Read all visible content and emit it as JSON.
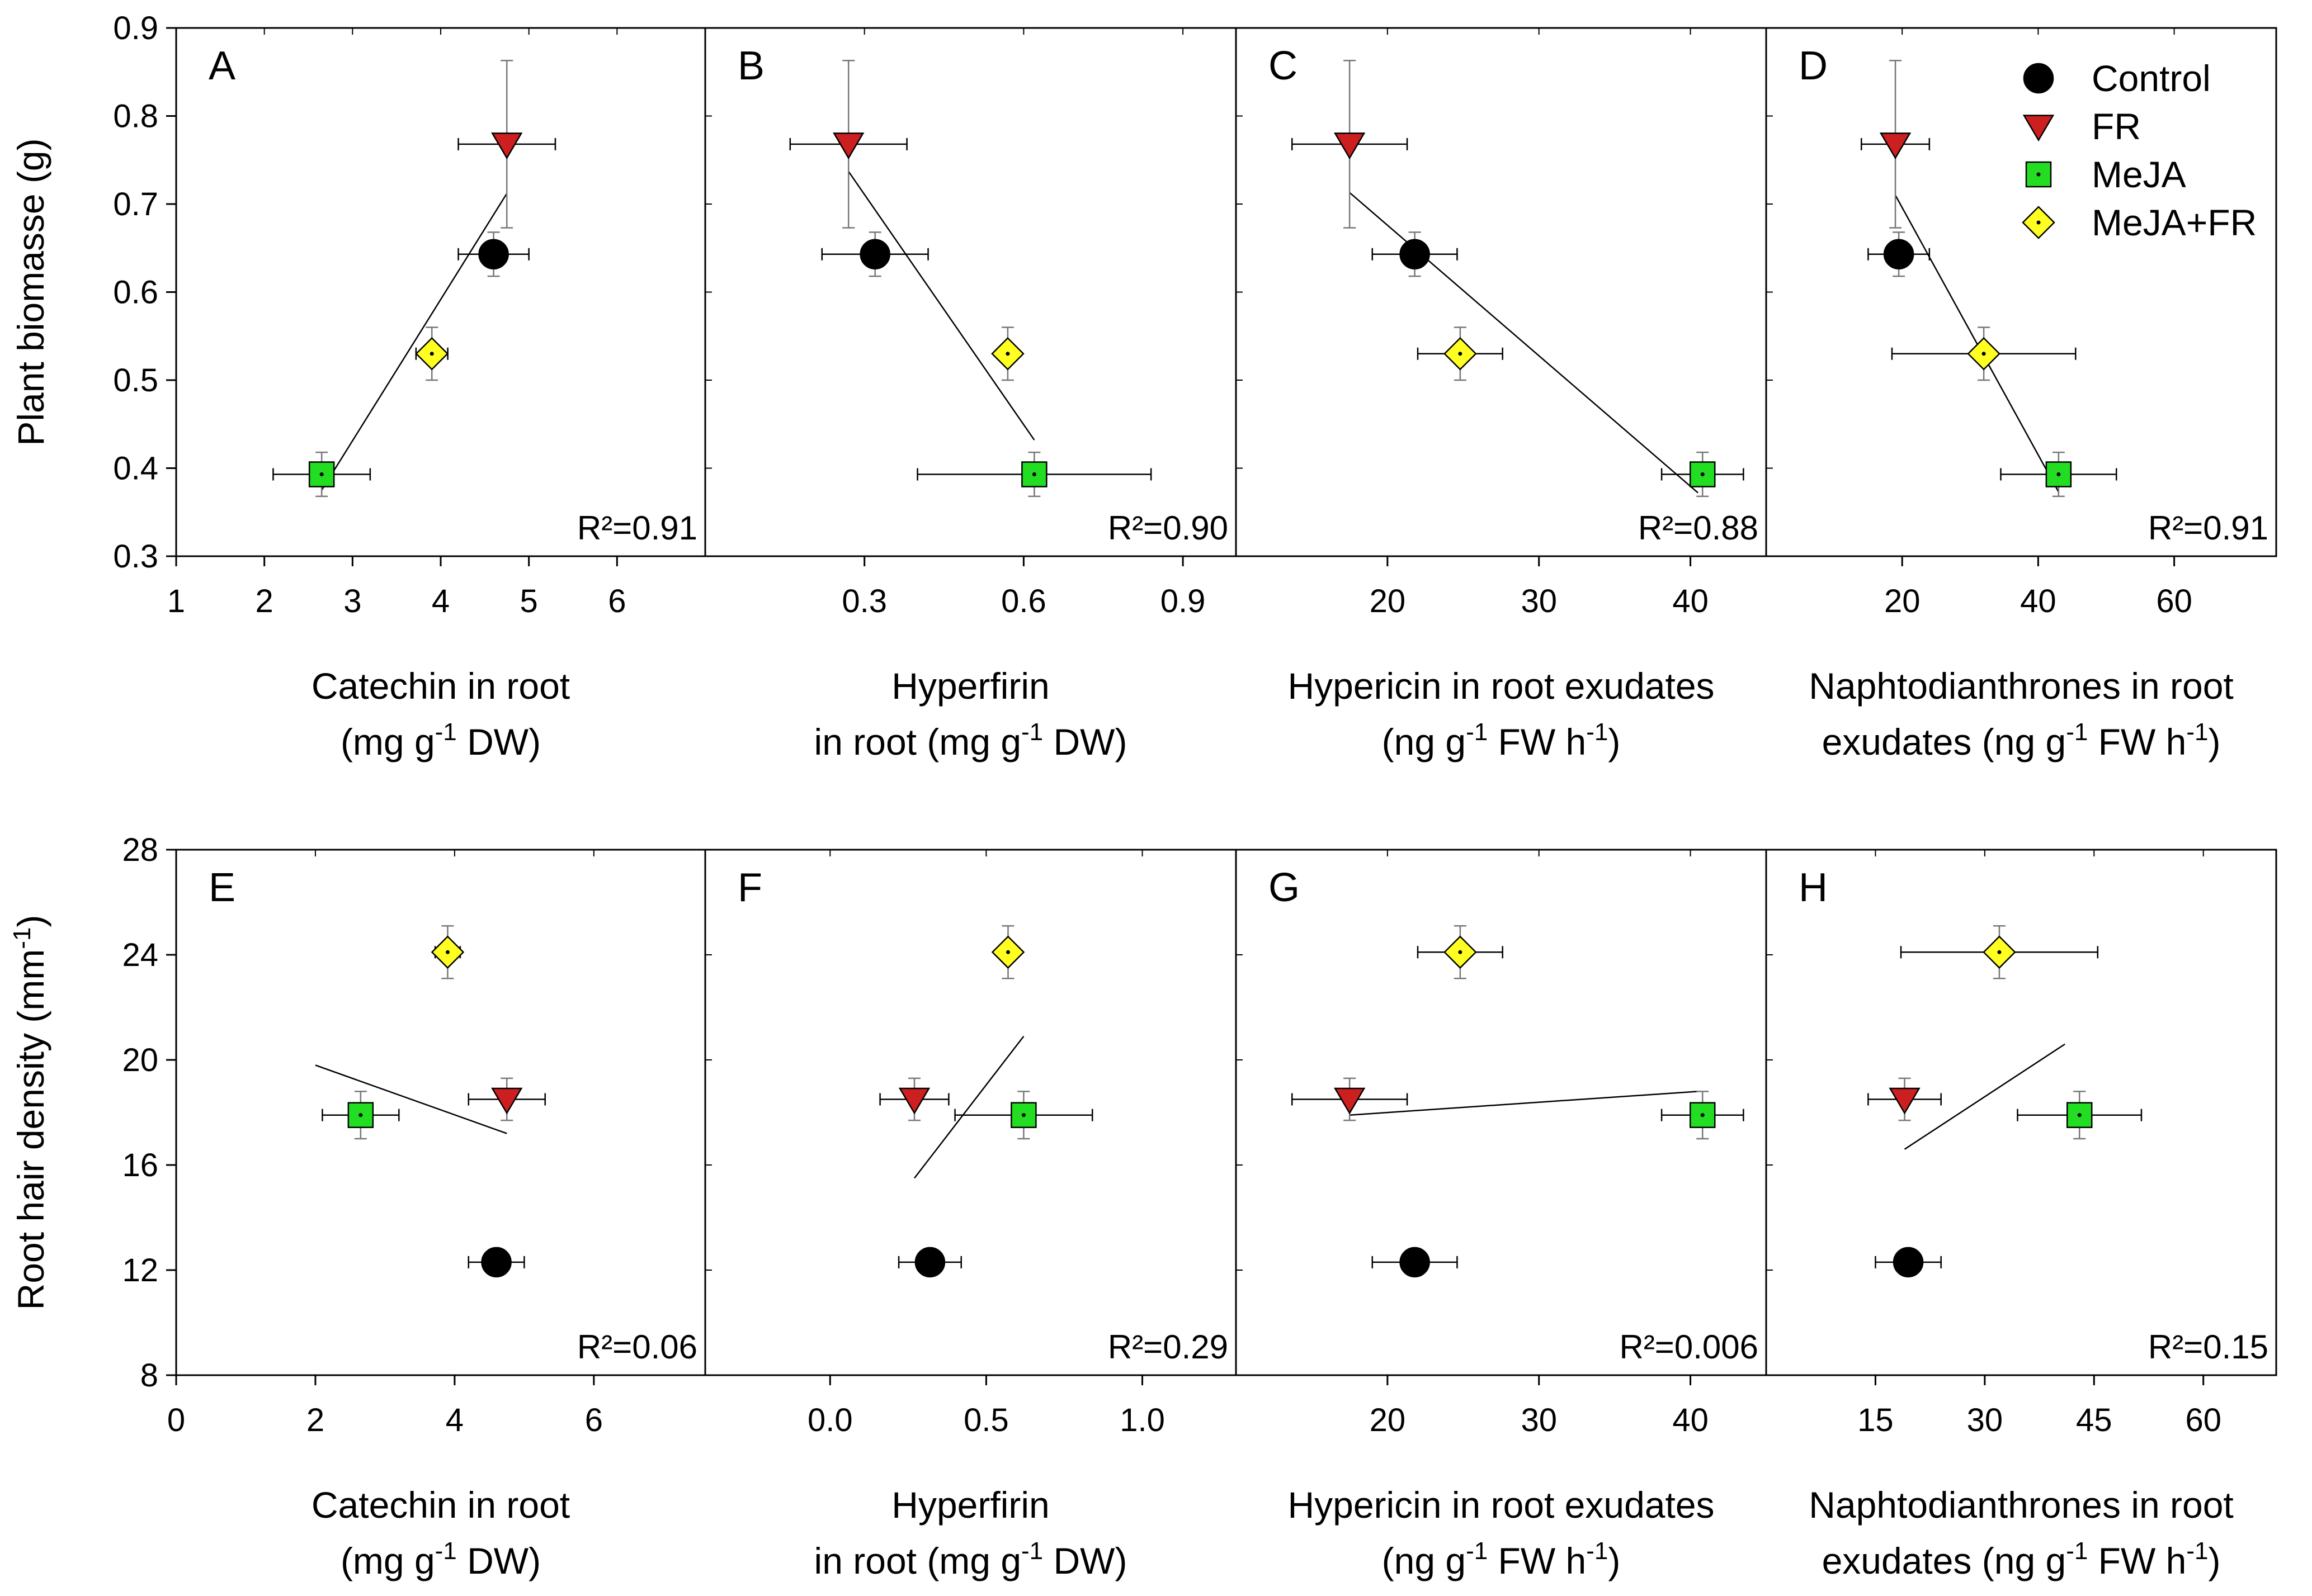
{
  "series": [
    {
      "key": "control",
      "name": "Control",
      "marker": "circle",
      "color": "#000000"
    },
    {
      "key": "fr",
      "name": "FR",
      "marker": "triangle-down",
      "color": "#cc1f1f"
    },
    {
      "key": "meja",
      "name": "MeJA",
      "marker": "square",
      "color": "#22dd22"
    },
    {
      "key": "mejafr",
      "name": "MeJA+FR",
      "marker": "diamond",
      "color": "#ffff22"
    }
  ],
  "rows": [
    {
      "ylabel": "Plant biomasse (g)",
      "ylim": [
        0.3,
        0.9
      ],
      "yticks": [
        "0.3",
        "0.4",
        "0.5",
        "0.6",
        "0.7",
        "0.8",
        "0.9"
      ]
    },
    {
      "ylabel": "Root hair density (mm",
      "ylabel_sup": "-1",
      "ylabel_end": ")",
      "ylim": [
        8,
        28
      ],
      "yticks": [
        "8",
        "12",
        "16",
        "20",
        "24",
        "28"
      ]
    }
  ],
  "chart_data": [
    {
      "type": "scatter",
      "panel": "A",
      "row": 0,
      "col": 0,
      "r2": "R²=0.91",
      "xlim": [
        1,
        7
      ],
      "xticks": [
        1,
        2,
        3,
        4,
        5,
        6
      ],
      "xtick_labels": [
        "1",
        "2",
        "3",
        "4",
        "5",
        "6"
      ],
      "xlabel_line1": "Catechin in root",
      "xlabel_line2": "(mg g",
      "xlabel_sup": "-1",
      "xlabel_end": " DW)",
      "points": {
        "control": {
          "x": 4.6,
          "y": 0.643,
          "xerr": 0.4,
          "yerr": 0.025
        },
        "fr": {
          "x": 4.75,
          "y": 0.768,
          "xerr": 0.55,
          "yerr": 0.095
        },
        "meja": {
          "x": 2.65,
          "y": 0.393,
          "xerr": 0.55,
          "yerr": 0.025
        },
        "mejafr": {
          "x": 3.9,
          "y": 0.53,
          "xerr": 0.18,
          "yerr": 0.03
        }
      },
      "fit": [
        [
          2.65,
          0.375
        ],
        [
          4.75,
          0.712
        ]
      ]
    },
    {
      "type": "scatter",
      "panel": "B",
      "row": 0,
      "col": 1,
      "r2": "R²=0.90",
      "xlim": [
        0.0,
        1.0
      ],
      "xticks": [
        0.3,
        0.6,
        0.9
      ],
      "xtick_labels": [
        "0.3",
        "0.6",
        "0.9"
      ],
      "xlabel_line1": "Hyperfirin",
      "xlabel_line2": "in root (mg g",
      "xlabel_sup": "-1",
      "xlabel_end": " DW)",
      "points": {
        "control": {
          "x": 0.32,
          "y": 0.643,
          "xerr": 0.1,
          "yerr": 0.025
        },
        "fr": {
          "x": 0.27,
          "y": 0.768,
          "xerr": 0.11,
          "yerr": 0.095
        },
        "meja": {
          "x": 0.62,
          "y": 0.393,
          "xerr": 0.22,
          "yerr": 0.025
        },
        "mejafr": {
          "x": 0.57,
          "y": 0.53,
          "xerr": 0.0,
          "yerr": 0.03
        }
      },
      "fit": [
        [
          0.27,
          0.737
        ],
        [
          0.62,
          0.432
        ]
      ]
    },
    {
      "type": "scatter",
      "panel": "C",
      "row": 0,
      "col": 2,
      "r2": "R²=0.88",
      "xlim": [
        10,
        45
      ],
      "xticks": [
        20,
        30,
        40
      ],
      "xtick_labels": [
        "20",
        "30",
        "40"
      ],
      "xlabel_line1": "Hypericin in root exudates",
      "xlabel_line2": "(ng g",
      "xlabel_sup": "-1",
      "xlabel_end": " FW h",
      "xlabel_sup2": "-1",
      "xlabel_end2": ")",
      "points": {
        "control": {
          "x": 21.8,
          "y": 0.643,
          "xerr": 2.8,
          "yerr": 0.025
        },
        "fr": {
          "x": 17.5,
          "y": 0.768,
          "xerr": 3.8,
          "yerr": 0.095
        },
        "meja": {
          "x": 40.8,
          "y": 0.393,
          "xerr": 2.7,
          "yerr": 0.025
        },
        "mejafr": {
          "x": 24.8,
          "y": 0.53,
          "xerr": 2.8,
          "yerr": 0.03
        }
      },
      "fit": [
        [
          17.5,
          0.713
        ],
        [
          40.5,
          0.372
        ]
      ]
    },
    {
      "type": "scatter",
      "panel": "D",
      "row": 0,
      "col": 3,
      "r2": "R²=0.91",
      "xlim": [
        0,
        75
      ],
      "xticks": [
        20,
        40,
        60
      ],
      "xtick_labels": [
        "20",
        "40",
        "60"
      ],
      "xlabel_line1": "Naphtodianthrones in root",
      "xlabel_line2": "exudates (ng g",
      "xlabel_sup": "-1",
      "xlabel_end": " FW h",
      "xlabel_sup2": "-1",
      "xlabel_end2": ")",
      "points": {
        "control": {
          "x": 19.5,
          "y": 0.643,
          "xerr": 4.5,
          "yerr": 0.025
        },
        "fr": {
          "x": 19.0,
          "y": 0.768,
          "xerr": 5.0,
          "yerr": 0.095
        },
        "meja": {
          "x": 43.0,
          "y": 0.393,
          "xerr": 8.5,
          "yerr": 0.025
        },
        "mejafr": {
          "x": 32.0,
          "y": 0.53,
          "xerr": 13.5,
          "yerr": 0.03
        }
      },
      "fit": [
        [
          19.0,
          0.71
        ],
        [
          43.0,
          0.373
        ]
      ]
    },
    {
      "type": "scatter",
      "panel": "E",
      "row": 1,
      "col": 0,
      "r2": "R²=0.06",
      "xlim": [
        0,
        7.6
      ],
      "xticks": [
        0,
        2,
        4,
        6
      ],
      "xtick_labels": [
        "0",
        "2",
        "4",
        "6"
      ],
      "xlabel_line1": "Catechin in root",
      "xlabel_line2": "(mg g",
      "xlabel_sup": "-1",
      "xlabel_end": " DW)",
      "points": {
        "control": {
          "x": 4.6,
          "y": 12.3,
          "xerr": 0.4,
          "yerr": 0.5
        },
        "fr": {
          "x": 4.75,
          "y": 18.5,
          "xerr": 0.55,
          "yerr": 0.8
        },
        "meja": {
          "x": 2.65,
          "y": 17.9,
          "xerr": 0.55,
          "yerr": 0.9
        },
        "mejafr": {
          "x": 3.9,
          "y": 24.1,
          "xerr": 0.18,
          "yerr": 1.0
        }
      },
      "fit": [
        [
          2.0,
          19.8
        ],
        [
          4.75,
          17.2
        ]
      ]
    },
    {
      "type": "scatter",
      "panel": "F",
      "row": 1,
      "col": 1,
      "r2": "R²=0.29",
      "xlim": [
        -0.4,
        1.3
      ],
      "xticks": [
        0.0,
        0.5,
        1.0
      ],
      "xtick_labels": [
        "0.0",
        "0.5",
        "1.0"
      ],
      "xlabel_line1": "Hyperfirin",
      "xlabel_line2": "in root (mg g",
      "xlabel_sup": "-1",
      "xlabel_end": " DW)",
      "points": {
        "control": {
          "x": 0.32,
          "y": 12.3,
          "xerr": 0.1,
          "yerr": 0.5
        },
        "fr": {
          "x": 0.27,
          "y": 18.5,
          "xerr": 0.11,
          "yerr": 0.8
        },
        "meja": {
          "x": 0.62,
          "y": 17.9,
          "xerr": 0.22,
          "yerr": 0.9
        },
        "mejafr": {
          "x": 0.57,
          "y": 24.1,
          "xerr": 0.0,
          "yerr": 1.0
        }
      },
      "fit": [
        [
          0.27,
          15.5
        ],
        [
          0.62,
          20.9
        ]
      ]
    },
    {
      "type": "scatter",
      "panel": "G",
      "row": 1,
      "col": 2,
      "r2": "R²=0.006",
      "xlim": [
        10,
        45
      ],
      "xticks": [
        20,
        30,
        40
      ],
      "xtick_labels": [
        "20",
        "30",
        "40"
      ],
      "xlabel_line1": "Hypericin in root exudates",
      "xlabel_line2": "(ng g",
      "xlabel_sup": "-1",
      "xlabel_end": " FW h",
      "xlabel_sup2": "-1",
      "xlabel_end2": ")",
      "points": {
        "control": {
          "x": 21.8,
          "y": 12.3,
          "xerr": 2.8,
          "yerr": 0.5
        },
        "fr": {
          "x": 17.5,
          "y": 18.5,
          "xerr": 3.8,
          "yerr": 0.8
        },
        "meja": {
          "x": 40.8,
          "y": 17.9,
          "xerr": 2.7,
          "yerr": 0.9
        },
        "mejafr": {
          "x": 24.8,
          "y": 24.1,
          "xerr": 2.8,
          "yerr": 1.0
        }
      },
      "fit": [
        [
          17.5,
          17.9
        ],
        [
          40.5,
          18.8
        ]
      ]
    },
    {
      "type": "scatter",
      "panel": "H",
      "row": 1,
      "col": 3,
      "r2": "R²=0.15",
      "xlim": [
        0,
        70
      ],
      "xticks": [
        15,
        30,
        45,
        60
      ],
      "xtick_labels": [
        "15",
        "30",
        "45",
        "60"
      ],
      "xlabel_line1": "Naphtodianthrones in root",
      "xlabel_line2": "exudates (ng g",
      "xlabel_sup": "-1",
      "xlabel_end": " FW h",
      "xlabel_sup2": "-1",
      "xlabel_end2": ")",
      "points": {
        "control": {
          "x": 19.5,
          "y": 12.3,
          "xerr": 4.5,
          "yerr": 0.5
        },
        "fr": {
          "x": 19.0,
          "y": 18.5,
          "xerr": 5.0,
          "yerr": 0.8
        },
        "meja": {
          "x": 43.0,
          "y": 17.9,
          "xerr": 8.5,
          "yerr": 0.9
        },
        "mejafr": {
          "x": 32.0,
          "y": 24.1,
          "xerr": 13.5,
          "yerr": 1.0
        }
      },
      "fit": [
        [
          19.0,
          16.6
        ],
        [
          41.0,
          20.6
        ]
      ]
    }
  ]
}
